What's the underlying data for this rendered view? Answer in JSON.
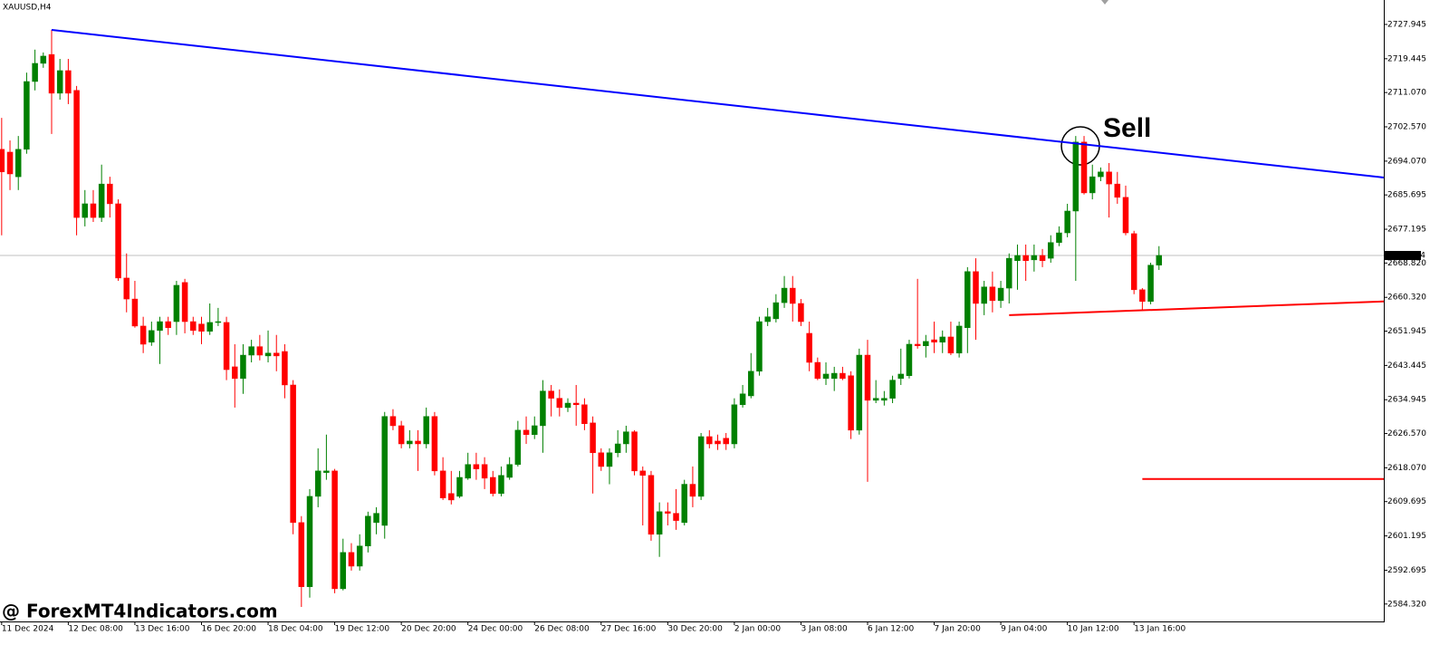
{
  "chart_data": {
    "type": "candlestick",
    "title": "XAUUSD,H4",
    "watermark": "@ ForexMT4Indicators.com",
    "annotation": "Sell",
    "up_color": "#008000",
    "down_color": "#ff0000",
    "current_price": 2670.694,
    "current_price_color": "#c0c0c0",
    "xlim": [
      -0.2,
      166
    ],
    "ylim": [
      2580.0,
      2734.0
    ],
    "yticks": [
      2727.945,
      2719.445,
      {
        "value": 2711.07,
        "label": "2711.070"
      },
      {
        "value": 2702.57,
        "label": "2702.570"
      },
      {
        "value": 2694.07,
        "label": "2694.070"
      },
      2685.695,
      2677.195,
      {
        "value": 2668.82,
        "label": "2668.820"
      },
      {
        "value": 2660.32,
        "label": "2660.320"
      },
      2651.945,
      2643.445,
      2634.945,
      {
        "value": 2626.57,
        "label": "2626.570"
      },
      {
        "value": 2618.07,
        "label": "2618.070"
      },
      2609.695,
      2601.195,
      2592.695,
      {
        "value": 2584.32,
        "label": "2584.320"
      }
    ],
    "xticks": [
      {
        "value": 0,
        "label": "11 Dec 2024"
      },
      {
        "value": 8,
        "label": "12 Dec 08:00"
      },
      {
        "value": 16,
        "label": "13 Dec 16:00"
      },
      {
        "value": 24,
        "label": "16 Dec 20:00"
      },
      {
        "value": 32,
        "label": "18 Dec 04:00"
      },
      {
        "value": 40,
        "label": "19 Dec 12:00"
      },
      {
        "value": 48,
        "label": "20 Dec 20:00"
      },
      {
        "value": 56,
        "label": "24 Dec 00:00"
      },
      {
        "value": 64,
        "label": "26 Dec 08:00"
      },
      {
        "value": 72,
        "label": "27 Dec 16:00"
      },
      {
        "value": 80,
        "label": "30 Dec 20:00"
      },
      {
        "value": 88,
        "label": "2 Jan 00:00"
      },
      {
        "value": 96,
        "label": "3 Jan 08:00"
      },
      {
        "value": 104,
        "label": "6 Jan 12:00"
      },
      {
        "value": 112,
        "label": "7 Jan 20:00"
      },
      {
        "value": 120,
        "label": "9 Jan 04:00"
      },
      {
        "value": 128,
        "label": "10 Jan 12:00"
      },
      {
        "value": 136,
        "label": "13 Jan 16:00"
      }
    ],
    "open": [
      2697.0,
      2696.3,
      2690.2,
      2697.0,
      2713.8,
      2718.3,
      2720.5,
      2710.9,
      2716.5,
      2711.6,
      2680.1,
      2683.5,
      2680.1,
      2688.4,
      2683.5,
      2665.1,
      2659.9,
      2653.2,
      2649.2,
      2652.1,
      2654.3,
      2654.3,
      2664.0,
      2654.3,
      2653.7,
      2651.9,
      2654.1,
      2654.1,
      2643.1,
      2640.2,
      2646.0,
      2648.1,
      2645.8,
      2646.5,
      2646.9,
      2638.6,
      2604.5,
      2588.6,
      2611.0,
      2616.9,
      2617.3,
      2588.1,
      2597.1,
      2593.7,
      2598.7,
      2604.5,
      2603.8,
      2630.8,
      2628.5,
      2624.0,
      2624.7,
      2624.0,
      2630.8,
      2617.3,
      2611.7,
      2611.0,
      2615.5,
      2618.9,
      2618.9,
      2615.7,
      2611.7,
      2615.7,
      2618.9,
      2627.4,
      2626.3,
      2628.5,
      2637.1,
      2635.3,
      2633.0,
      2634.1,
      2633.7,
      2629.2,
      2621.8,
      2618.4,
      2621.8,
      2624.0,
      2627.0,
      2617.3,
      2616.2,
      2601.6,
      2607.2,
      2606.8,
      2604.5,
      2614.0,
      2611.0,
      2625.8,
      2624.7,
      2625.4,
      2624.0,
      2633.7,
      2635.9,
      2642.0,
      2654.3,
      2655.0,
      2659.0,
      2662.6,
      2658.8,
      2651.4,
      2644.2,
      2640.2,
      2640.2,
      2641.5,
      2640.9,
      2627.4,
      2646.0,
      2634.8,
      2634.8,
      2635.3,
      2640.2,
      2640.9,
      2648.7,
      2648.3,
      2649.8,
      2649.2,
      2650.5,
      2646.5,
      2652.8,
      2666.7,
      2658.8,
      2662.9,
      2659.5,
      2662.6,
      2669.4,
      2670.7,
      2669.6,
      2670.7,
      2670.0,
      2673.9,
      2676.3,
      2681.7,
      2698.8,
      2686.2,
      2690.2,
      2691.4,
      2688.4,
      2685.1,
      2676.1,
      2662.2,
      2659.3,
      2668.3
    ],
    "high": [
      2704.8,
      2699.2,
      2700.3,
      2716.0,
      2721.7,
      2721.0,
      2726.6,
      2719.4,
      2719.4,
      2712.7,
      2686.9,
      2686.9,
      2693.2,
      2690.2,
      2684.6,
      2671.2,
      2664.4,
      2655.5,
      2654.3,
      2655.5,
      2655.5,
      2664.4,
      2664.9,
      2655.5,
      2655.5,
      2658.8,
      2657.7,
      2655.5,
      2648.7,
      2648.7,
      2649.8,
      2651.0,
      2652.1,
      2651.0,
      2648.7,
      2639.8,
      2606.1,
      2612.8,
      2622.9,
      2626.3,
      2617.8,
      2600.5,
      2599.4,
      2601.6,
      2607.2,
      2608.3,
      2631.9,
      2632.6,
      2629.7,
      2627.4,
      2627.4,
      2633.0,
      2631.9,
      2620.7,
      2617.3,
      2617.3,
      2621.8,
      2621.8,
      2620.7,
      2617.3,
      2618.4,
      2620.7,
      2629.7,
      2630.8,
      2630.8,
      2639.8,
      2638.6,
      2637.5,
      2635.3,
      2638.6,
      2635.3,
      2630.8,
      2622.9,
      2622.9,
      2627.4,
      2628.5,
      2627.4,
      2618.4,
      2617.3,
      2609.5,
      2609.5,
      2612.8,
      2615.1,
      2618.4,
      2626.7,
      2627.4,
      2626.3,
      2626.7,
      2635.3,
      2638.6,
      2646.5,
      2655.5,
      2657.7,
      2661.1,
      2665.6,
      2665.6,
      2659.9,
      2654.3,
      2645.4,
      2644.2,
      2643.1,
      2643.1,
      2642.0,
      2647.6,
      2649.8,
      2639.8,
      2637.1,
      2640.9,
      2647.6,
      2649.8,
      2664.9,
      2651.0,
      2654.3,
      2652.1,
      2654.3,
      2654.3,
      2667.8,
      2670.0,
      2664.4,
      2666.7,
      2664.4,
      2671.2,
      2673.4,
      2673.4,
      2673.4,
      2672.3,
      2675.7,
      2677.9,
      2683.5,
      2700.3,
      2700.3,
      2693.2,
      2692.5,
      2693.6,
      2691.4,
      2688.0,
      2676.8,
      2662.6,
      2668.9,
      2673.0
    ],
    "low": [
      2675.7,
      2686.9,
      2686.9,
      2695.9,
      2711.6,
      2717.2,
      2700.8,
      2709.3,
      2708.2,
      2675.7,
      2677.9,
      2679.0,
      2679.0,
      2680.1,
      2664.4,
      2656.6,
      2652.8,
      2646.5,
      2648.3,
      2643.8,
      2651.0,
      2651.0,
      2651.4,
      2651.0,
      2648.7,
      2651.0,
      2653.2,
      2639.8,
      2633.0,
      2636.4,
      2644.2,
      2644.7,
      2644.2,
      2642.0,
      2635.3,
      2601.6,
      2583.6,
      2585.9,
      2608.3,
      2615.1,
      2587.0,
      2587.7,
      2592.6,
      2592.6,
      2597.1,
      2601.6,
      2600.5,
      2627.4,
      2622.9,
      2622.9,
      2617.3,
      2622.9,
      2616.2,
      2610.1,
      2609.0,
      2610.6,
      2615.1,
      2615.1,
      2612.8,
      2611.0,
      2611.0,
      2615.1,
      2618.4,
      2624.0,
      2625.2,
      2621.8,
      2630.8,
      2630.8,
      2631.9,
      2628.5,
      2627.4,
      2611.7,
      2617.3,
      2614.0,
      2620.7,
      2621.8,
      2616.2,
      2603.8,
      2600.0,
      2596.0,
      2603.8,
      2602.7,
      2603.8,
      2608.3,
      2610.1,
      2622.9,
      2622.5,
      2622.5,
      2622.9,
      2633.0,
      2635.3,
      2640.9,
      2653.2,
      2654.1,
      2657.7,
      2654.3,
      2653.2,
      2642.0,
      2639.8,
      2638.6,
      2637.1,
      2639.8,
      2625.2,
      2626.3,
      2614.6,
      2634.1,
      2633.5,
      2634.1,
      2638.6,
      2640.2,
      2647.6,
      2645.4,
      2646.5,
      2646.5,
      2646.0,
      2645.4,
      2646.5,
      2649.8,
      2655.9,
      2656.6,
      2657.7,
      2658.8,
      2662.2,
      2664.4,
      2666.7,
      2667.8,
      2668.9,
      2673.0,
      2675.2,
      2664.4,
      2685.8,
      2684.6,
      2689.1,
      2680.1,
      2683.5,
      2675.7,
      2661.1,
      2657.3,
      2658.6,
      2667.1
    ],
    "close": [
      2691.4,
      2690.9,
      2697.0,
      2713.8,
      2718.3,
      2720.1,
      2710.9,
      2716.5,
      2710.9,
      2680.1,
      2683.5,
      2680.1,
      2688.4,
      2683.5,
      2665.1,
      2659.9,
      2653.2,
      2648.7,
      2652.1,
      2654.3,
      2652.8,
      2663.3,
      2654.3,
      2652.1,
      2651.9,
      2654.1,
      2654.3,
      2642.4,
      2640.2,
      2646.0,
      2648.1,
      2646.0,
      2646.5,
      2645.8,
      2638.6,
      2604.5,
      2588.6,
      2611.0,
      2617.3,
      2617.3,
      2588.1,
      2597.1,
      2593.7,
      2598.7,
      2606.1,
      2606.8,
      2630.8,
      2628.5,
      2624.0,
      2624.7,
      2624.0,
      2630.8,
      2617.3,
      2610.6,
      2610.1,
      2615.7,
      2618.9,
      2617.8,
      2615.5,
      2611.7,
      2616.2,
      2618.9,
      2627.4,
      2626.3,
      2628.5,
      2637.1,
      2635.3,
      2633.0,
      2634.1,
      2633.7,
      2629.0,
      2621.8,
      2618.4,
      2621.8,
      2624.0,
      2627.0,
      2617.3,
      2616.2,
      2601.6,
      2607.2,
      2606.8,
      2605.0,
      2614.0,
      2611.0,
      2625.8,
      2624.0,
      2624.0,
      2624.0,
      2633.7,
      2636.4,
      2642.0,
      2654.3,
      2655.5,
      2659.0,
      2662.6,
      2658.8,
      2654.3,
      2644.2,
      2640.2,
      2641.3,
      2641.5,
      2640.2,
      2627.4,
      2646.0,
      2634.8,
      2635.3,
      2635.3,
      2639.8,
      2641.3,
      2648.7,
      2648.3,
      2649.4,
      2649.2,
      2650.5,
      2646.5,
      2653.2,
      2666.7,
      2658.8,
      2662.9,
      2659.5,
      2662.6,
      2670.0,
      2670.7,
      2669.4,
      2670.7,
      2669.4,
      2673.9,
      2676.3,
      2681.7,
      2698.8,
      2686.2,
      2690.2,
      2691.4,
      2688.4,
      2685.1,
      2676.3,
      2662.2,
      2659.3,
      2668.3,
      2670.7
    ],
    "trendlines": [
      {
        "color": "#0000ff",
        "x": [
          6,
          166
        ],
        "y": [
          2726.6,
          2690.0
        ]
      },
      {
        "color": "#ff0000",
        "x": [
          121,
          166
        ],
        "y": [
          2655.9,
          2659.3
        ]
      },
      {
        "color": "#ff0000",
        "x": [
          137,
          166
        ],
        "y": [
          2615.3,
          2615.3
        ]
      }
    ]
  }
}
